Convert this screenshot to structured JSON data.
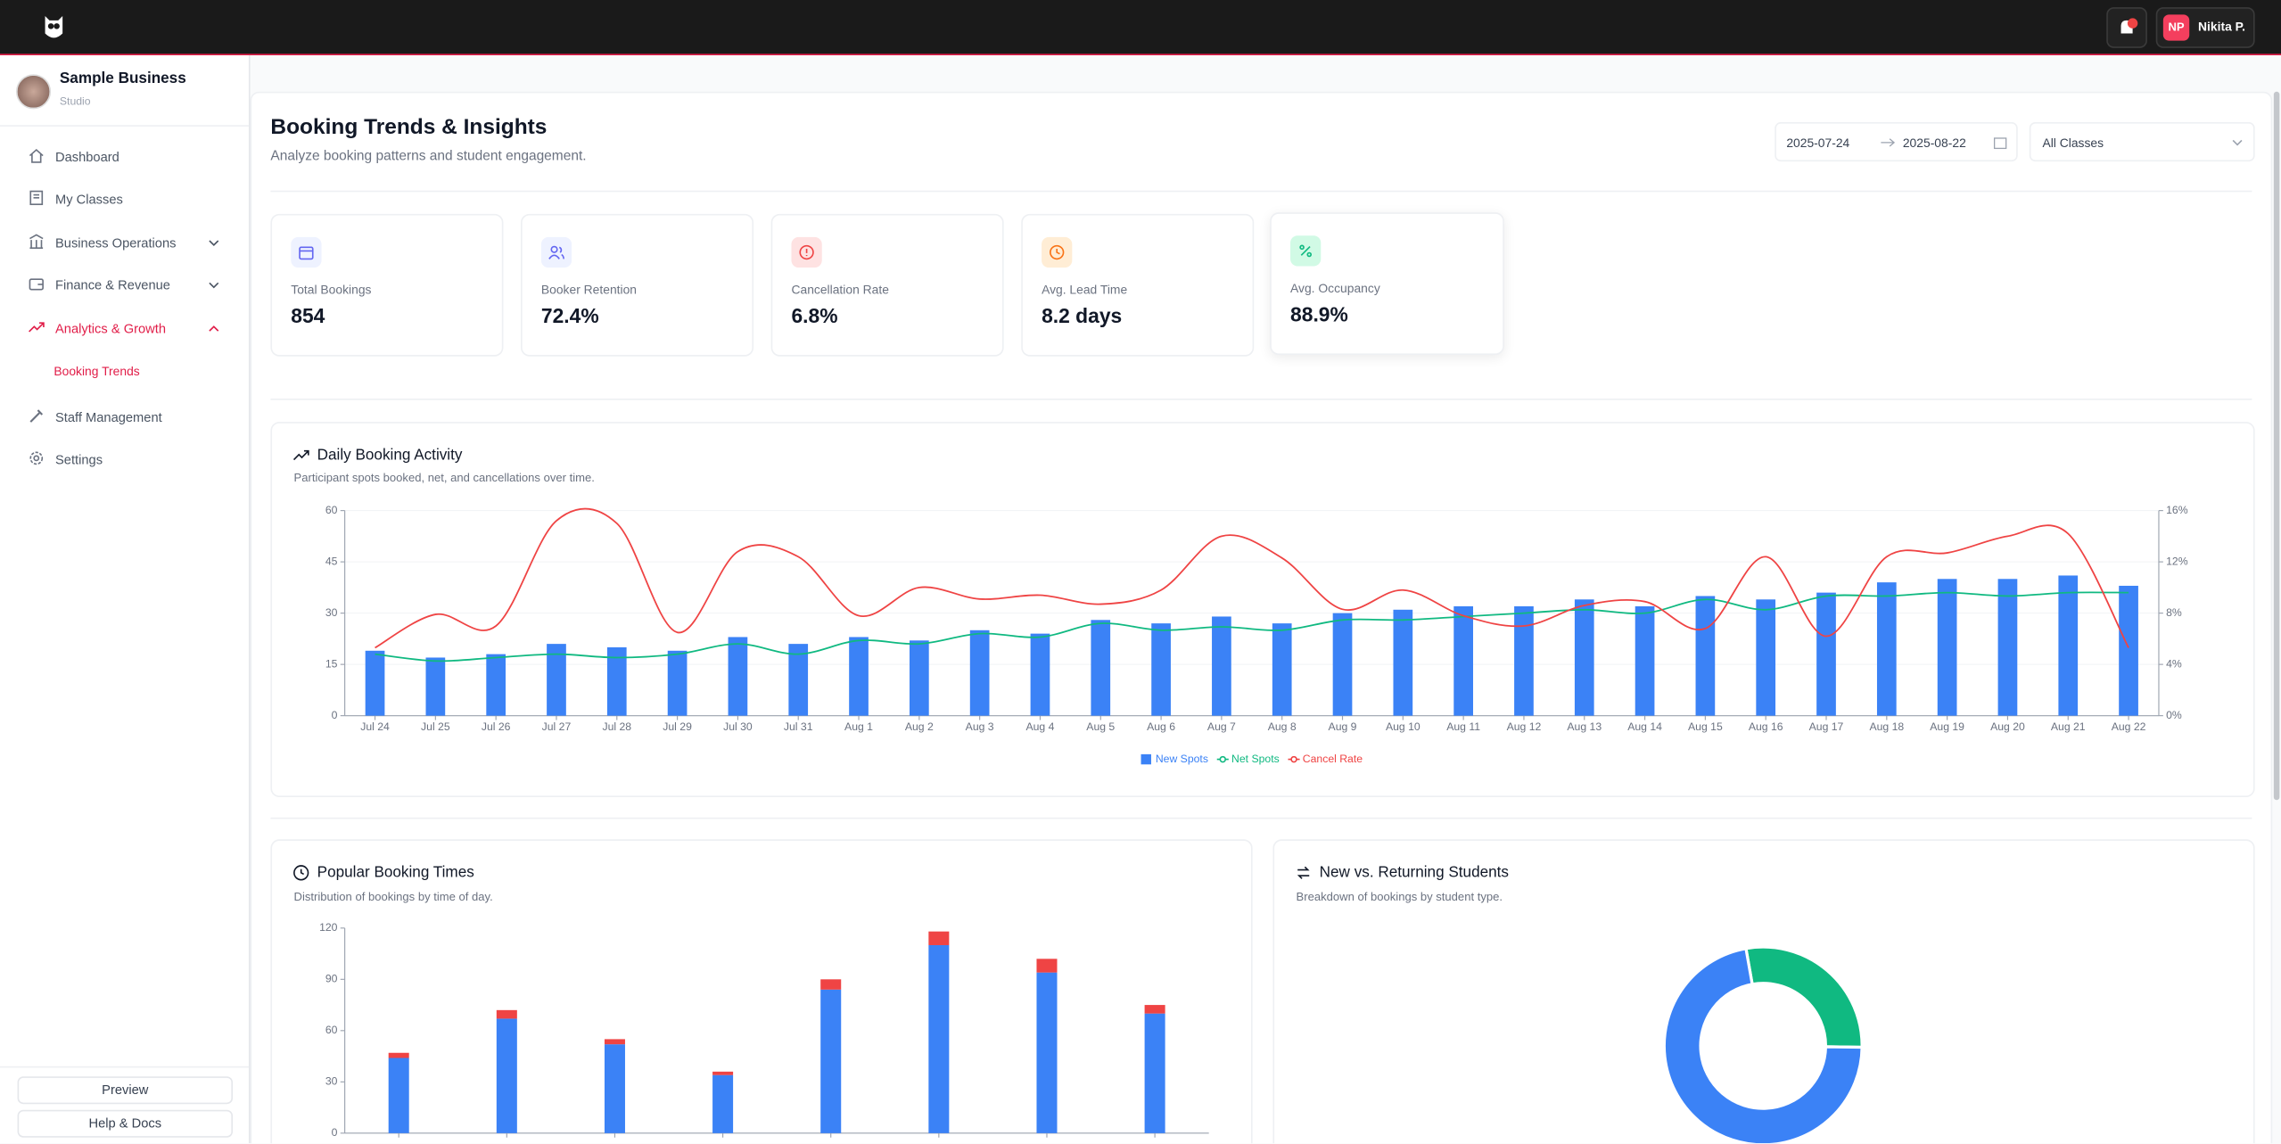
{
  "header": {
    "user_initials": "NP",
    "user_name": "Nikita P."
  },
  "sidebar": {
    "business_name": "Sample Business",
    "business_type": "Studio",
    "nav": [
      "Dashboard",
      "My Classes",
      "Business Operations",
      "Finance & Revenue",
      "Analytics & Growth",
      "Staff Management",
      "Settings"
    ],
    "sub_item": "Booking Trends",
    "footer": [
      "Preview",
      "Help & Docs"
    ]
  },
  "page": {
    "title": "Booking Trends & Insights",
    "subtitle": "Analyze booking patterns and student engagement.",
    "date_from": "2025-07-24",
    "date_to": "2025-08-22",
    "class_filter": "All Classes"
  },
  "kpis": [
    {
      "label": "Total Bookings",
      "value": "854"
    },
    {
      "label": "Booker Retention",
      "value": "72.4%"
    },
    {
      "label": "Cancellation Rate",
      "value": "6.8%"
    },
    {
      "label": "Avg. Lead Time",
      "value": "8.2 days"
    },
    {
      "label": "Avg. Occupancy",
      "value": "88.9%"
    }
  ],
  "chart_data": [
    {
      "type": "combo",
      "title": "Daily Booking Activity",
      "subtitle": "Participant spots booked, net, and cancellations over time.",
      "categories": [
        "Jul 24",
        "Jul 25",
        "Jul 26",
        "Jul 27",
        "Jul 28",
        "Jul 29",
        "Jul 30",
        "Jul 31",
        "Aug 1",
        "Aug 2",
        "Aug 3",
        "Aug 4",
        "Aug 5",
        "Aug 6",
        "Aug 7",
        "Aug 8",
        "Aug 9",
        "Aug 10",
        "Aug 11",
        "Aug 12",
        "Aug 13",
        "Aug 14",
        "Aug 15",
        "Aug 16",
        "Aug 17",
        "Aug 18",
        "Aug 19",
        "Aug 20",
        "Aug 21",
        "Aug 22"
      ],
      "series": [
        {
          "name": "New Spots",
          "kind": "bar",
          "color": "#3b82f6",
          "values": [
            19,
            17,
            18,
            21,
            20,
            19,
            23,
            21,
            23,
            22,
            25,
            24,
            28,
            27,
            29,
            27,
            30,
            31,
            32,
            32,
            34,
            32,
            35,
            34,
            36,
            39,
            40,
            40,
            41,
            38
          ]
        },
        {
          "name": "Net Spots",
          "kind": "line",
          "color": "#10b981",
          "values": [
            18,
            16,
            17,
            18,
            17,
            18,
            21,
            18,
            22,
            21,
            24,
            23,
            27,
            25,
            26,
            25,
            28,
            28,
            29,
            30,
            31,
            30,
            34,
            31,
            35,
            35,
            36,
            35,
            36,
            36
          ]
        },
        {
          "name": "Cancel Rate",
          "kind": "line",
          "axis": "y2",
          "color": "#ef4444",
          "values": [
            5.3,
            7.9,
            7.0,
            15.2,
            15.0,
            6.5,
            12.8,
            12.4,
            7.8,
            10.0,
            9.1,
            9.4,
            8.7,
            9.8,
            14.0,
            12.3,
            8.3,
            9.8,
            7.8,
            7.0,
            8.6,
            8.9,
            6.8,
            12.4,
            6.2,
            12.4,
            12.7,
            14.0,
            14.2,
            5.3
          ]
        }
      ],
      "ylim": [
        0,
        60
      ],
      "yticks": [
        0,
        15,
        30,
        45,
        60
      ],
      "y2lim": [
        0,
        16
      ],
      "y2ticks": [
        {
          "value": 0,
          "label": "0%"
        },
        {
          "value": 4,
          "label": "4%"
        },
        {
          "value": 8,
          "label": "8%"
        },
        {
          "value": 12,
          "label": "12%"
        },
        {
          "value": 16,
          "label": "16%"
        }
      ],
      "grid": true,
      "legend": "bottom"
    },
    {
      "type": "bar",
      "stacked": true,
      "title": "Popular Booking Times",
      "subtitle": "Distribution of bookings by time of day.",
      "categories": [
        null,
        null,
        null,
        null,
        null,
        null,
        null,
        null
      ],
      "series": [
        {
          "color": "#3b82f6",
          "values": [
            44,
            67,
            52,
            34,
            84,
            110,
            94,
            70
          ]
        },
        {
          "color": "#ef4444",
          "values": [
            3,
            5,
            3,
            2,
            6,
            8,
            8,
            5
          ]
        }
      ],
      "ylim": [
        0,
        120
      ],
      "yticks": [
        0,
        30,
        60,
        90,
        120
      ],
      "grid": false
    },
    {
      "type": "donut",
      "title": "New vs. Returning Students",
      "subtitle": "Breakdown of bookings by student type.",
      "values": [
        28,
        72
      ],
      "colors": [
        "#10b981",
        "#3b82f6"
      ],
      "start_angle": -10
    }
  ]
}
